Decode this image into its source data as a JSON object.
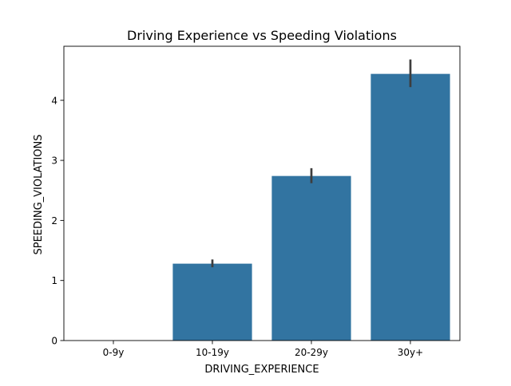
{
  "chart_data": {
    "type": "bar",
    "title": "Driving Experience vs Speeding Violations",
    "xlabel": "DRIVING_EXPERIENCE",
    "ylabel": "SPEEDING_VIOLATIONS",
    "categories": [
      "0-9y",
      "10-19y",
      "20-29y",
      "30y+"
    ],
    "values": [
      0.0,
      1.28,
      2.74,
      4.44
    ],
    "error_bars": [
      [
        0.0,
        0.0
      ],
      [
        1.22,
        1.35
      ],
      [
        2.62,
        2.87
      ],
      [
        4.22,
        4.68
      ]
    ],
    "ylim": [
      0,
      4.9
    ],
    "yticks": [
      0,
      1,
      2,
      3,
      4
    ],
    "bar_color": "#3274a1",
    "error_color": "#3d3d3d",
    "grid": false,
    "legend": "none"
  }
}
